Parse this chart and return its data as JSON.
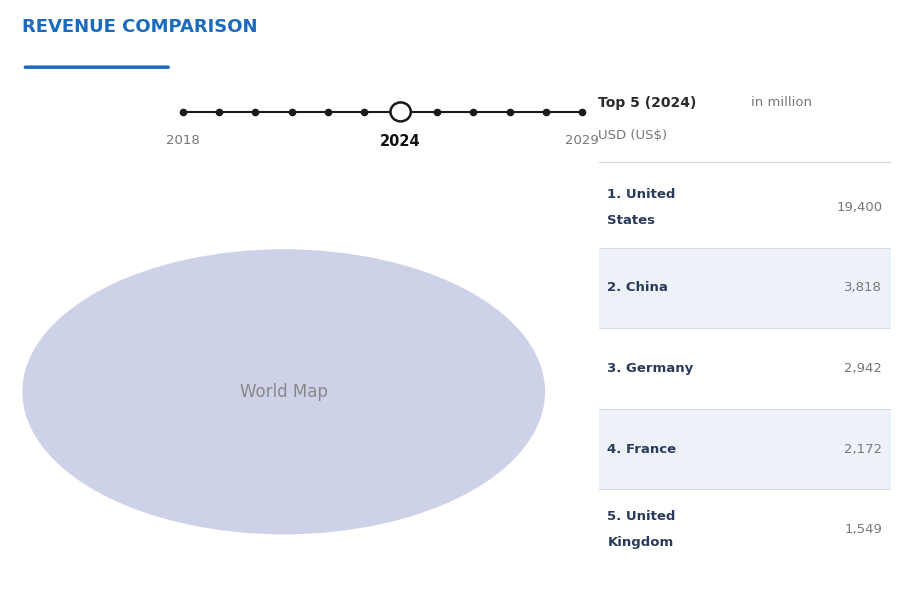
{
  "title": "REVENUE COMPARISON",
  "title_color": "#1a6bbd",
  "title_underline_color": "#1a6bbd",
  "background_color": "#ffffff",
  "timeline": {
    "years": [
      2018,
      2019,
      2020,
      2021,
      2022,
      2023,
      2024,
      2025,
      2026,
      2027,
      2028,
      2029
    ],
    "highlight_year": 2024,
    "label_years": [
      2018,
      2024,
      2029
    ],
    "line_color": "#1a1a1a",
    "dot_color": "#1a1a1a",
    "highlight_circle_facecolor": "#ffffff",
    "highlight_circle_edgecolor": "#1a1a1a",
    "label_color": "#777777",
    "highlight_label_color": "#111111",
    "highlight_label_bold": true
  },
  "legend_title_bold": "Top 5 (2024)",
  "legend_title_normal": " in million",
  "legend_subtitle": "USD (US$)",
  "legend_title_bold_color": "#2a2a2a",
  "legend_title_normal_color": "#777777",
  "legend_subtitle_color": "#777777",
  "row_data": [
    {
      "name_line1": "1. United",
      "name_line2": "States",
      "value": "19,400",
      "bg": "#ffffff"
    },
    {
      "name_line1": "2. China",
      "name_line2": "",
      "value": "3,818",
      "bg": "#edf2f9"
    },
    {
      "name_line1": "3. Germany",
      "name_line2": "",
      "value": "2,942",
      "bg": "#ffffff"
    },
    {
      "name_line1": "4. France",
      "name_line2": "",
      "value": "2,172",
      "bg": "#edf2f9"
    },
    {
      "name_line1": "5. United",
      "name_line2": "Kingdom",
      "value": "1,549",
      "bg": "#ffffff"
    }
  ],
  "row_name_color": "#2a3a5a",
  "row_value_color": "#777777",
  "divider_color": "#d0d5dd",
  "map_default_color": "#cdd2e8",
  "map_edge_color": "#ffffff",
  "map_highlight_us": "#1c3fa0",
  "map_highlight_china": "#7080c8",
  "map_highlight_germany": "#8090c0",
  "map_highlight_france": "#8090c0",
  "map_highlight_uk": "#8090c0",
  "map_greenland_color": "#e8e8f0",
  "map_canada_color": "#cdd2e8"
}
